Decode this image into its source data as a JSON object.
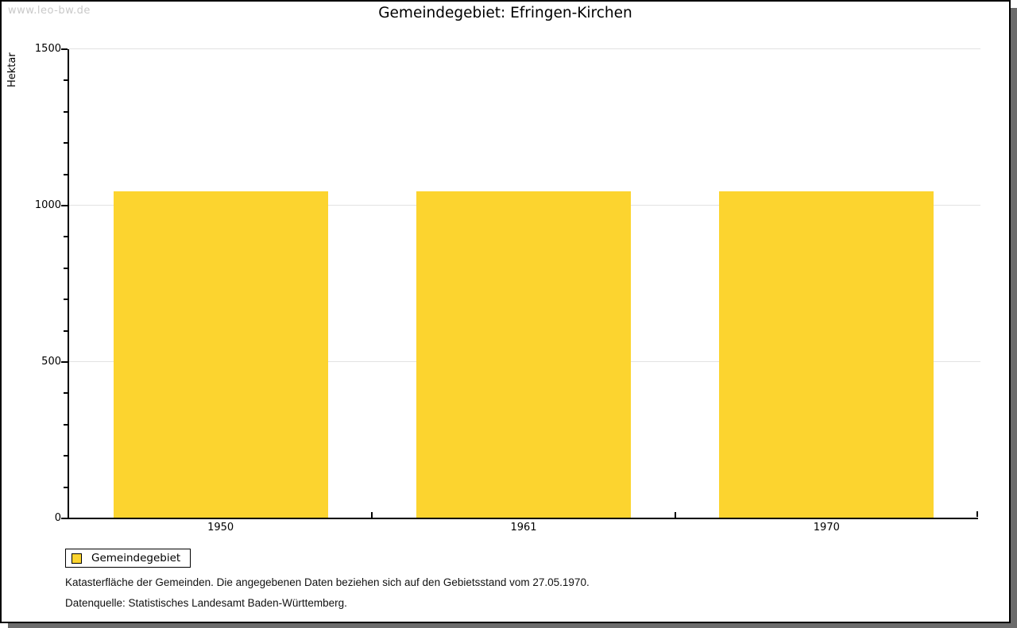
{
  "watermark": "www.leo-bw.de",
  "title": "Gemeindegebiet: Efringen-Kirchen",
  "chart_data": {
    "type": "bar",
    "title": "Gemeindegebiet: Efringen-Kirchen",
    "categories": [
      "1950",
      "1961",
      "1970"
    ],
    "series": [
      {
        "name": "Gemeindegebiet",
        "color": "#FCD42F",
        "values": [
          1045,
          1045,
          1045
        ]
      }
    ],
    "xlabel": "",
    "ylabel": "Hektar",
    "ylim": [
      0,
      1500
    ],
    "yticks": [
      0,
      500,
      1000,
      1500
    ],
    "minor_tick_step": 100,
    "grid": true,
    "legend_position": "bottom-left"
  },
  "legend": {
    "label": "Gemeindegebiet",
    "swatch_color": "#FCD42F"
  },
  "footer": {
    "line1": "Katasterfläche der Gemeinden. Die angegebenen Daten beziehen sich auf den Gebietsstand vom 27.05.1970.",
    "line2": "Datenquelle: Statistisches Landesamt Baden-Württemberg."
  },
  "colors": {
    "bar": "#FCD42F",
    "gridline": "#e2e2e2",
    "watermark_text": "#c9c9c9",
    "frame_shadow": "#6b6b6b",
    "axis": "#000000"
  }
}
